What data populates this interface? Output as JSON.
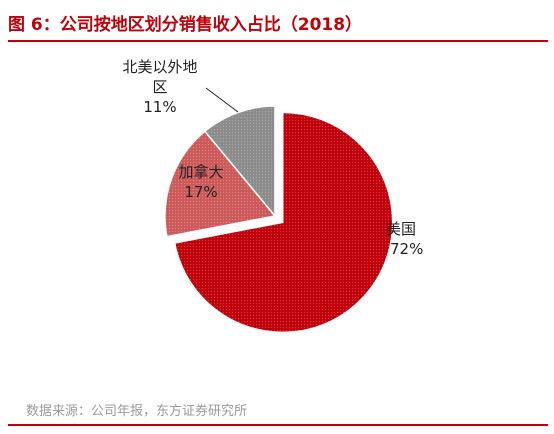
{
  "title": "图 6：公司按地区划分销售收入占比（2018）",
  "source": "数据来源：公司年报，东方证券研究所",
  "chart_data": {
    "type": "pie",
    "title": "图 6：公司按地区划分销售收入占比（2018）",
    "slices": [
      {
        "label": "美国",
        "value": 72,
        "value_label": "72%",
        "color": "#c0000a",
        "exploded": true
      },
      {
        "label": "加拿大",
        "value": 17,
        "value_label": "17%",
        "color": "#cd5a5a",
        "exploded": false
      },
      {
        "label": "北美以外地区",
        "label_lines": [
          "北美以外地",
          "区"
        ],
        "value": 11,
        "value_label": "11%",
        "color": "#8c8c8c",
        "exploded": false
      }
    ]
  }
}
